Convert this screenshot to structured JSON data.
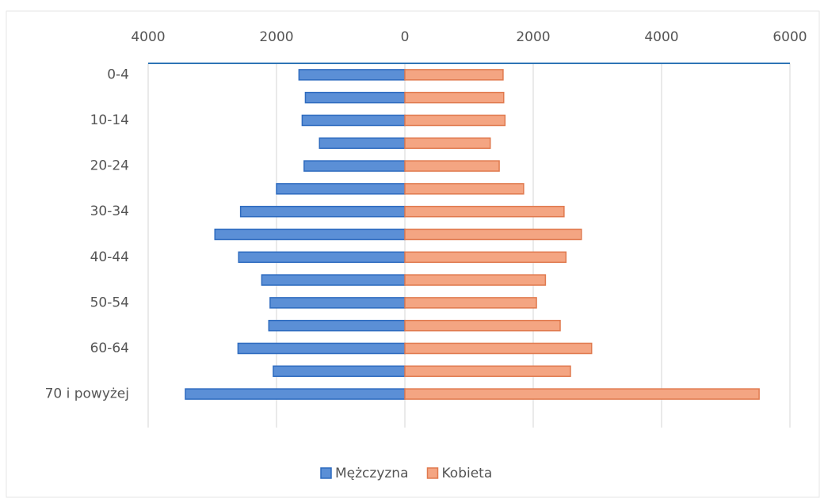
{
  "chart_data": {
    "type": "bar",
    "orientation": "horizontal",
    "categories": [
      "0-4",
      null,
      "10-14",
      null,
      "20-24",
      null,
      "30-34",
      null,
      "40-44",
      null,
      "50-54",
      null,
      "60-64",
      null,
      "70 i powyżej"
    ],
    "series": [
      {
        "name": "Mężczyzna",
        "color": "#5b8fd6",
        "values": [
          -1650,
          -1550,
          -1600,
          -1330,
          -1570,
          -2000,
          -2560,
          -2960,
          -2590,
          -2230,
          -2100,
          -2120,
          -2600,
          -2050,
          -3420
        ]
      },
      {
        "name": "Kobieta",
        "color": "#f4a582",
        "values": [
          1530,
          1540,
          1560,
          1330,
          1470,
          1850,
          2480,
          2750,
          2510,
          2190,
          2050,
          2420,
          2910,
          2580,
          5520
        ]
      }
    ],
    "xlim": [
      -4000,
      6000
    ],
    "xticks": [
      {
        "value": -4000,
        "label": "4000"
      },
      {
        "value": -2000,
        "label": "2000"
      },
      0,
      2000,
      4000,
      6000
    ],
    "grid": true,
    "legend": "bottom"
  }
}
